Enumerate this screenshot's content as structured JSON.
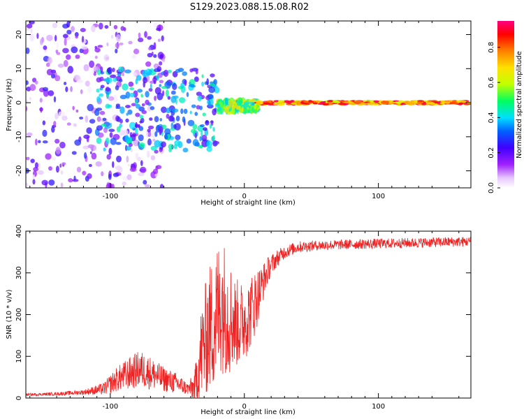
{
  "figure": {
    "title": "S129.2023.088.15.08.R02"
  },
  "chart_data": [
    {
      "type": "heatmap",
      "title": "",
      "xlabel": "Height of straight line (km)",
      "ylabel": "Frequency (Hz)",
      "xlim": [
        -163,
        169
      ],
      "ylim": [
        -25,
        24
      ],
      "x_ticks": [
        -100,
        0,
        100
      ],
      "y_ticks": [
        -20,
        -10,
        0,
        10,
        20
      ],
      "colorbar": {
        "label": "Normalized spectral amplitude",
        "range": [
          0,
          0.95
        ],
        "ticks": [
          0.0,
          0.2,
          0.4,
          0.6,
          0.8
        ],
        "colormap": [
          "#ffffff",
          "#e6c6ff",
          "#a020ff",
          "#4000ff",
          "#0060ff",
          "#00e0ff",
          "#00ff60",
          "#c0ff00",
          "#ffe000",
          "#ff8000",
          "#ff0000",
          "#ff0080"
        ]
      },
      "description_of_data": [
        {
          "x_range": [
            -163,
            -60
          ],
          "freq_range": [
            -25,
            24
          ],
          "amplitude": [
            0.02,
            0.3
          ],
          "pattern": "diffuse"
        },
        {
          "x_range": [
            -110,
            -20
          ],
          "freq_range": [
            -14,
            10
          ],
          "amplitude": [
            0.2,
            0.5
          ],
          "pattern": "scattered"
        },
        {
          "x_range": [
            -20,
            10
          ],
          "freq_range": [
            -3,
            1
          ],
          "amplitude": [
            0.4,
            0.7
          ],
          "pattern": "converging"
        },
        {
          "x_range": [
            10,
            169
          ],
          "freq_range": [
            -0.5,
            0.5
          ],
          "amplitude": [
            0.6,
            0.95
          ],
          "pattern": "steady line at 0 Hz"
        }
      ]
    },
    {
      "type": "line",
      "title": "",
      "xlabel": "Height of straight line (km)",
      "ylabel": "SNR (10 * v/v)",
      "xlim": [
        -163,
        169
      ],
      "ylim": [
        0,
        400
      ],
      "x_ticks": [
        -100,
        0,
        100
      ],
      "y_ticks": [
        0,
        100,
        200,
        300,
        400
      ],
      "series": [
        {
          "color": "#ee2222",
          "x": [
            -163,
            -140,
            -120,
            -105,
            -95,
            -85,
            -78,
            -70,
            -60,
            -50,
            -42,
            -37,
            -32,
            -27,
            -22,
            -17,
            -12,
            -7,
            -2,
            3,
            8,
            13,
            18,
            23,
            30,
            40,
            55,
            75,
            100,
            125,
            150,
            169
          ],
          "values": [
            8,
            10,
            14,
            22,
            45,
            60,
            70,
            60,
            45,
            35,
            22,
            25,
            110,
            160,
            190,
            230,
            200,
            180,
            180,
            195,
            230,
            270,
            310,
            330,
            350,
            362,
            366,
            368,
            370,
            372,
            374,
            375
          ],
          "noise_amplitude": [
            3,
            4,
            6,
            15,
            30,
            40,
            45,
            40,
            30,
            25,
            15,
            40,
            120,
            150,
            170,
            170,
            150,
            110,
            100,
            90,
            80,
            50,
            30,
            22,
            16,
            14,
            12,
            12,
            12,
            12,
            12,
            12
          ]
        }
      ]
    }
  ]
}
